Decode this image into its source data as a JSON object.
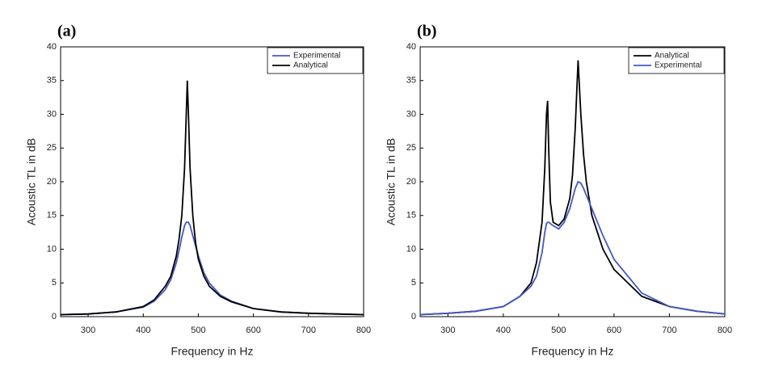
{
  "chart_data": [
    {
      "type": "line",
      "label": "(a)",
      "xlabel": "Frequency in Hz",
      "ylabel": "Acoustic TL in dB",
      "xlim": [
        250,
        800
      ],
      "ylim": [
        0,
        40
      ],
      "xticks": [
        300,
        400,
        500,
        600,
        700,
        800
      ],
      "yticks": [
        0,
        5,
        10,
        15,
        20,
        25,
        30,
        35,
        40
      ],
      "legend": "upper right",
      "x": [
        250,
        300,
        350,
        400,
        420,
        440,
        450,
        460,
        465,
        470,
        475,
        478,
        480,
        482,
        485,
        490,
        495,
        500,
        510,
        520,
        540,
        560,
        600,
        650,
        700,
        750,
        800
      ],
      "series": [
        {
          "name": "Experimental",
          "color": "#4358c4",
          "values": [
            0.3,
            0.4,
            0.7,
            1.4,
            2.3,
            4,
            5.5,
            8,
            9.8,
            11.8,
            13.5,
            14,
            14,
            14,
            13.5,
            12,
            10.5,
            9,
            6.5,
            5,
            3.2,
            2.3,
            1.2,
            0.7,
            0.5,
            0.4,
            0.3
          ]
        },
        {
          "name": "Analytical",
          "color": "#000000",
          "values": [
            0.3,
            0.4,
            0.7,
            1.5,
            2.5,
            4.5,
            6,
            9,
            11.5,
            15,
            22,
            30,
            35,
            30,
            22,
            15,
            11,
            8.5,
            6,
            4.5,
            3,
            2.2,
            1.2,
            0.7,
            0.5,
            0.4,
            0.3
          ]
        }
      ]
    },
    {
      "type": "line",
      "label": "(b)",
      "xlabel": "Frequency in Hz",
      "ylabel": "Acoustic TL in dB",
      "xlim": [
        250,
        800
      ],
      "ylim": [
        0,
        40
      ],
      "xticks": [
        300,
        400,
        500,
        600,
        700,
        800
      ],
      "yticks": [
        0,
        5,
        10,
        15,
        20,
        25,
        30,
        35,
        40
      ],
      "legend": "upper right",
      "x": [
        250,
        300,
        350,
        400,
        430,
        450,
        460,
        470,
        475,
        478,
        480,
        482,
        485,
        490,
        500,
        510,
        520,
        525,
        530,
        535,
        540,
        545,
        550,
        560,
        580,
        600,
        650,
        700,
        750,
        800
      ],
      "series": [
        {
          "name": "Analytical",
          "color": "#000000",
          "values": [
            0.3,
            0.5,
            0.8,
            1.5,
            3,
            5,
            8,
            14,
            22,
            30,
            32,
            25,
            17,
            14,
            13.5,
            14.5,
            17.5,
            21,
            28,
            38,
            30,
            24,
            20,
            15,
            10,
            7,
            3,
            1.5,
            0.8,
            0.4
          ]
        },
        {
          "name": "Experimental",
          "color": "#4358c4",
          "values": [
            0.3,
            0.5,
            0.8,
            1.5,
            3,
            4.5,
            6,
            9.5,
            12.5,
            13.8,
            14,
            14,
            13.8,
            13.5,
            13,
            14,
            16,
            17.5,
            19,
            20,
            19.8,
            19,
            18,
            16,
            12,
            8.5,
            3.5,
            1.5,
            0.8,
            0.4
          ]
        }
      ]
    }
  ]
}
